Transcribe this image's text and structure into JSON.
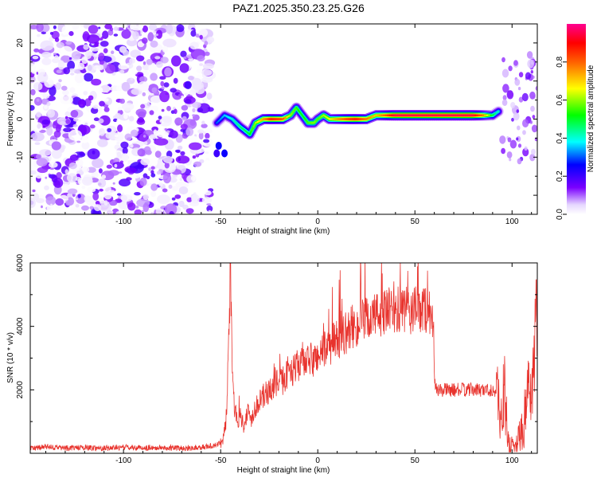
{
  "title": "PAZ1.2025.350.23.25.G26",
  "chart_data": [
    {
      "type": "heatmap",
      "name": "spectrogram",
      "xlabel": "Height of straight line (km)",
      "ylabel": "Frequency (Hz)",
      "xlim": [
        -148,
        113
      ],
      "ylim": [
        -25,
        25
      ],
      "xticks": [
        -100,
        -50,
        0,
        50,
        100
      ],
      "xtick_labels": [
        "-100",
        "-50",
        "0",
        "50",
        "100"
      ],
      "yticks": [
        -20,
        -10,
        0,
        10,
        20
      ],
      "ytick_labels": [
        "-20",
        "-10",
        "0",
        "10",
        "20"
      ],
      "noise_region_km": [
        -148,
        -55
      ],
      "ridge": {
        "x_km": [
          -52,
          -48,
          -44,
          -40,
          -35,
          -32,
          -28,
          -24,
          -18,
          -14,
          -11,
          -8,
          -5,
          -2,
          0,
          3,
          6,
          10,
          15,
          20,
          25,
          30,
          40,
          50,
          60,
          70,
          80,
          85,
          90,
          93
        ],
        "freq_hz": [
          -1,
          1,
          0,
          -2,
          -4,
          -1,
          0,
          0,
          0,
          1,
          3,
          1,
          -1,
          -1,
          0,
          1,
          0,
          0,
          0,
          0,
          0,
          1,
          1,
          1,
          1,
          1,
          1,
          1,
          1,
          2
        ],
        "amplitude": [
          0.3,
          0.35,
          0.4,
          0.45,
          0.5,
          0.6,
          0.75,
          0.9,
          0.85,
          0.6,
          0.55,
          0.5,
          0.55,
          0.6,
          0.55,
          0.6,
          0.65,
          0.75,
          0.85,
          0.9,
          0.8,
          0.7,
          0.95,
          0.95,
          0.95,
          0.95,
          0.95,
          0.8,
          0.5,
          0.4
        ]
      },
      "colorbar": {
        "label": "Normalized spectral amplitude",
        "range": [
          0,
          1
        ],
        "ticks": [
          0.0,
          0.2,
          0.4,
          0.6,
          0.8
        ],
        "tick_labels": [
          "0.0",
          "0.2",
          "0.4",
          "0.6",
          "0.8"
        ],
        "colormap": "rainbow (white to violet, blue, cyan, green, yellow, red, magenta)"
      }
    },
    {
      "type": "line",
      "name": "snr",
      "xlabel": "Height of straight line (km)",
      "ylabel": "SNR (10 * v/v)",
      "xlim": [
        -148,
        113
      ],
      "ylim": [
        0,
        6000
      ],
      "xticks": [
        -100,
        -50,
        0,
        50,
        100
      ],
      "xtick_labels": [
        "-100",
        "-50",
        "0",
        "50",
        "100"
      ],
      "yticks": [
        2000,
        4000,
        6000
      ],
      "ytick_labels": [
        "2000",
        "4000",
        "6000"
      ],
      "color": "#e8332d",
      "series": [
        {
          "name": "SNR",
          "x": [
            -148,
            -140,
            -130,
            -120,
            -110,
            -100,
            -90,
            -80,
            -70,
            -60,
            -52,
            -49,
            -48,
            -47,
            -46,
            -45,
            -44,
            -43,
            -42,
            -41,
            -40,
            -38,
            -36,
            -34,
            -32,
            -30,
            -28,
            -26,
            -24,
            -22,
            -20,
            -18,
            -16,
            -14,
            -12,
            -10,
            -8,
            -6,
            -4,
            -2,
            0,
            2,
            4,
            6,
            8,
            10,
            12,
            15,
            18,
            20,
            22,
            25,
            28,
            30,
            33,
            36,
            40,
            45,
            50,
            55,
            58,
            59.5,
            60,
            60.5,
            65,
            70,
            75,
            80,
            85,
            90,
            92,
            94,
            96,
            98,
            100,
            102,
            104,
            106,
            108,
            110,
            112,
            113
          ],
          "y": [
            150,
            200,
            170,
            180,
            160,
            190,
            170,
            180,
            160,
            190,
            250,
            400,
            700,
            1200,
            3000,
            5800,
            2500,
            1500,
            1300,
            1100,
            1200,
            900,
            1300,
            1100,
            1500,
            1600,
            1800,
            1900,
            2000,
            2200,
            2200,
            2300,
            2500,
            2700,
            2600,
            2800,
            3000,
            2700,
            3000,
            2900,
            3100,
            3200,
            3300,
            3300,
            3500,
            3600,
            3700,
            3800,
            4000,
            4000,
            4100,
            4200,
            4300,
            4350,
            4400,
            4450,
            4500,
            4450,
            4500,
            4550,
            4500,
            4400,
            2600,
            2000,
            2000,
            2000,
            2000,
            2000,
            2000,
            2000,
            1900,
            1200,
            2000,
            300,
            250,
            150,
            600,
            800,
            2300,
            1200,
            3600,
            4000
          ]
        }
      ]
    }
  ]
}
